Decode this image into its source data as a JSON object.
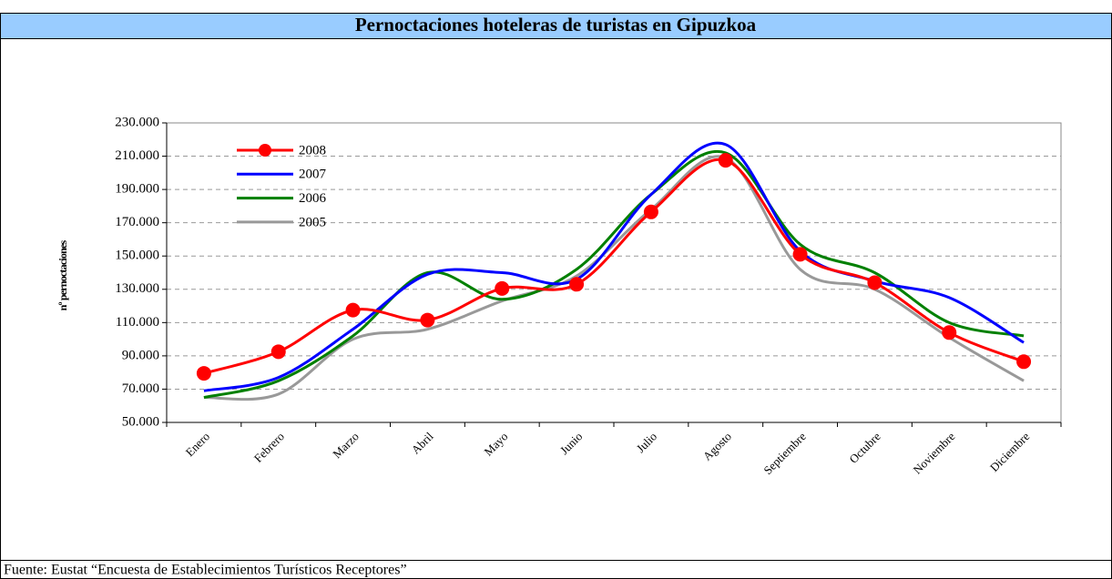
{
  "chart_data": {
    "type": "line",
    "title": "Pernoctaciones hoteleras de turistas en Gipuzkoa",
    "y_label": "nº pernoctaciones",
    "source": "Fuente: Eustat “Encuesta de Establecimientos Turísticos Receptores”",
    "categories": [
      "Enero",
      "Febrero",
      "Marzo",
      "Abril",
      "Mayo",
      "Junio",
      "Julio",
      "Agosto",
      "Septiembre",
      "Octubre",
      "Noviembre",
      "Diciembre"
    ],
    "series": [
      {
        "name": "2008",
        "color": "#ff0000",
        "marker": true,
        "values": [
          79500,
          92500,
          117500,
          111500,
          130500,
          133000,
          176500,
          207500,
          151000,
          134000,
          104000,
          86500
        ]
      },
      {
        "name": "2007",
        "color": "#0000ff",
        "values": [
          69000,
          77000,
          106000,
          139000,
          140000,
          136000,
          187000,
          217000,
          153000,
          135000,
          125000,
          98000
        ]
      },
      {
        "name": "2006",
        "color": "#008000",
        "values": [
          65000,
          75000,
          102000,
          140000,
          124000,
          142000,
          187000,
          212000,
          157000,
          140000,
          110000,
          102000
        ]
      },
      {
        "name": "2005",
        "color": "#999999",
        "values": [
          65000,
          67000,
          100000,
          106000,
          123000,
          138000,
          178000,
          209000,
          142000,
          130000,
          101000,
          75000
        ]
      }
    ],
    "ylim": [
      50000,
      230000
    ],
    "yticks": [
      {
        "value": 50000,
        "label": "50.000"
      },
      {
        "value": 70000,
        "label": "70.000"
      },
      {
        "value": 90000,
        "label": "90.000"
      },
      {
        "value": 110000,
        "label": "110.000"
      },
      {
        "value": 130000,
        "label": "130.000"
      },
      {
        "value": 150000,
        "label": "150.000"
      },
      {
        "value": 170000,
        "label": "170.000"
      },
      {
        "value": 190000,
        "label": "190.000"
      },
      {
        "value": 210000,
        "label": "210.000"
      },
      {
        "value": 230000,
        "label": "230.000"
      }
    ],
    "grid": true,
    "legend": "upper left"
  }
}
